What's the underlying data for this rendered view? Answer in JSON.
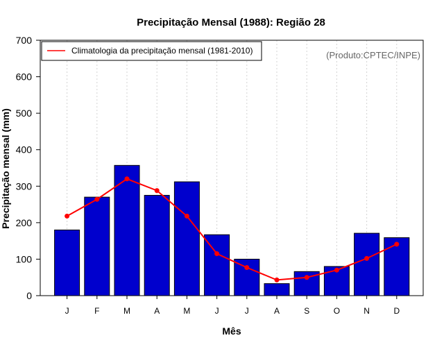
{
  "chart_data": {
    "type": "bar",
    "title": "Precipitação Mensal (1988): Região 28",
    "xlabel": "Mês",
    "ylabel": "Precipitação mensal (mm)",
    "ylim": [
      0,
      700
    ],
    "yticks": [
      0,
      100,
      200,
      300,
      400,
      500,
      600,
      700
    ],
    "categories": [
      "J",
      "F",
      "M",
      "A",
      "M",
      "J",
      "J",
      "A",
      "S",
      "O",
      "N",
      "D"
    ],
    "series": [
      {
        "name": "Precipitação mensal (1988)",
        "kind": "bar",
        "color": "#0000CD",
        "values": [
          180,
          270,
          357,
          275,
          312,
          167,
          100,
          33,
          66,
          80,
          171,
          159
        ]
      },
      {
        "name": "Climatologia da precipitação mensal (1981-2010)",
        "kind": "line",
        "color": "#FF0000",
        "values": [
          218,
          264,
          320,
          288,
          218,
          115,
          77,
          43,
          50,
          70,
          102,
          141
        ]
      }
    ],
    "grid": "vertical-dotted",
    "legend_position": "top-left",
    "annotation": "(Produto:CPTEC/INPE)"
  }
}
